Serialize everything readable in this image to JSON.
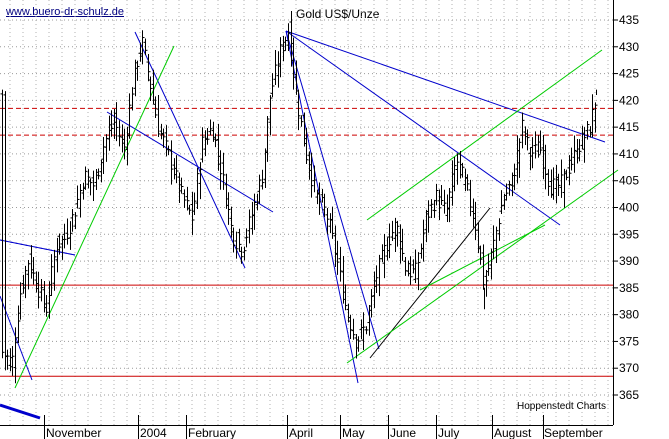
{
  "chart_data": {
    "type": "ohlc",
    "title": "Gold US$/Unze",
    "watermark": "www.buero-dr-schulz.de",
    "credit": "Hoppenstedt Charts",
    "y_ticks": [
      365,
      370,
      375,
      380,
      385,
      390,
      395,
      400,
      405,
      410,
      415,
      420,
      425,
      430,
      435
    ],
    "ylim": [
      362,
      438
    ],
    "x_ticks": [
      {
        "label": "November",
        "x": 0
      },
      {
        "label": "2004",
        "x": 1
      },
      {
        "label": "February",
        "x": 2
      },
      {
        "label": "April",
        "x": 3
      },
      {
        "label": "May",
        "x": 4
      },
      {
        "label": "June",
        "x": 5
      },
      {
        "label": "July",
        "x": 6
      },
      {
        "label": "August",
        "x": 7
      },
      {
        "label": "September",
        "x": 8
      }
    ],
    "horizontal_lines": [
      {
        "value": 418.5,
        "style": "dashed",
        "color": "#cc0000"
      },
      {
        "value": 413.5,
        "style": "dashed",
        "color": "#cc0000"
      },
      {
        "value": 385.5,
        "style": "solid",
        "color": "#cc0000"
      },
      {
        "value": 368.5,
        "style": "solid",
        "color": "#cc0000"
      }
    ],
    "grid": true,
    "colors": {
      "bars": "#000000",
      "trend_blue": "#0000cc",
      "trend_green": "#00cc00",
      "support": "#cc0000"
    }
  }
}
